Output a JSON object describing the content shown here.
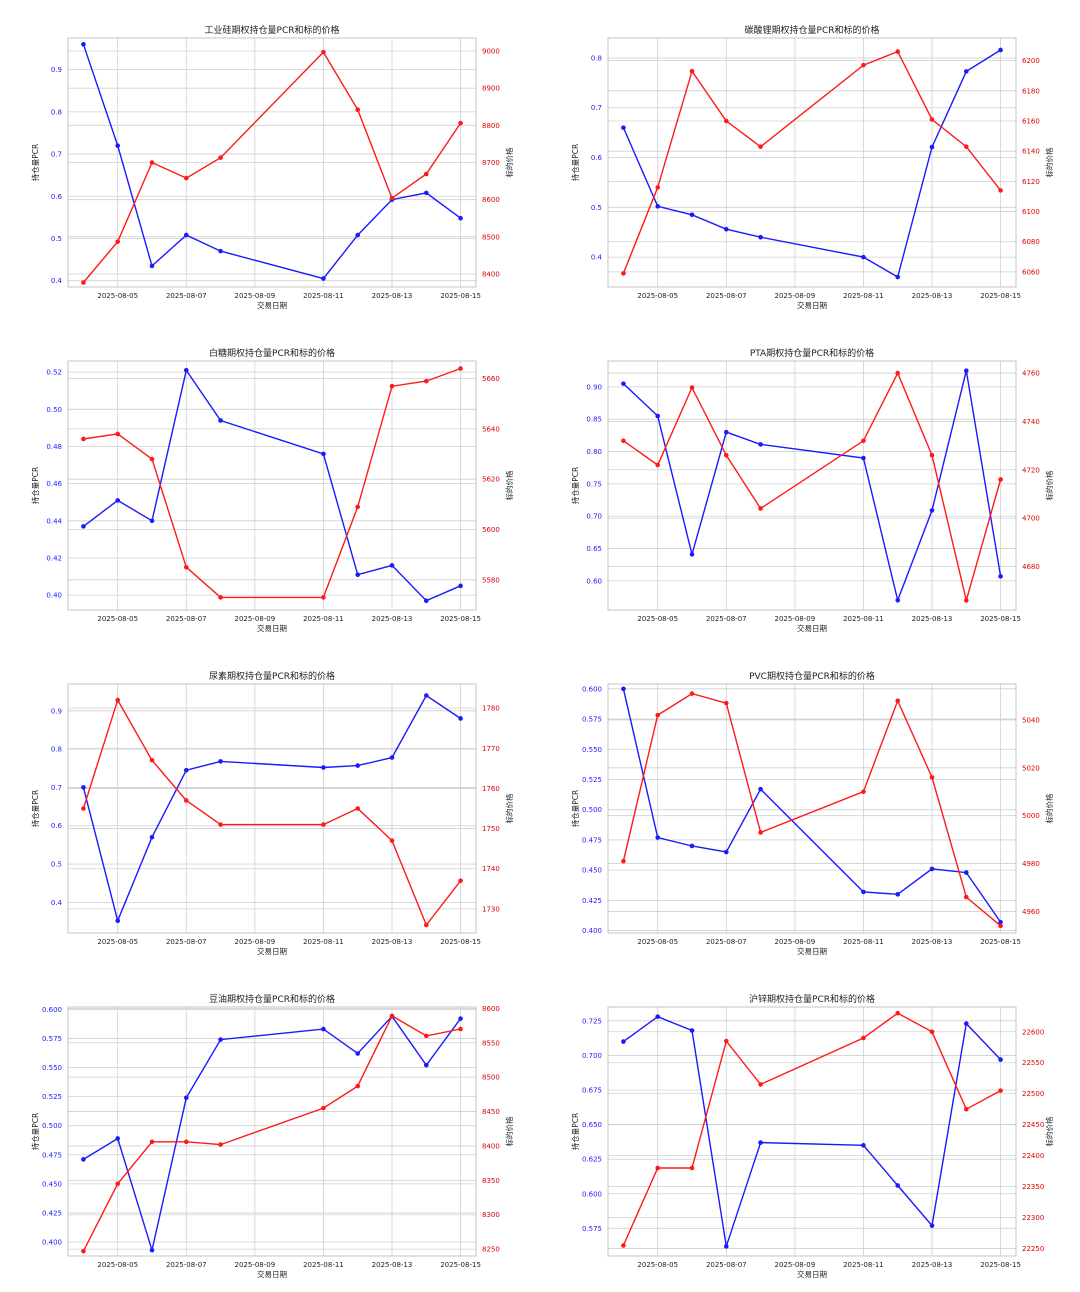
{
  "colors": {
    "pcr": "#1a1aff",
    "price": "#ff1a1a"
  },
  "chart_data": [
    {
      "type": "line",
      "title": "工业硅期权持仓量PCR和标的价格",
      "xlabel": "交易日期",
      "ylabel_left": "持仓量PCR",
      "ylabel_right": "标的价格",
      "xticks": [
        "2025-08-05",
        "2025-08-07",
        "2025-08-09",
        "2025-08-11",
        "2025-08-13",
        "2025-08-15"
      ],
      "x": [
        "2025-08-04",
        "2025-08-05",
        "2025-08-06",
        "2025-08-07",
        "2025-08-08",
        "2025-08-11",
        "2025-08-12",
        "2025-08-13",
        "2025-08-14",
        "2025-08-15"
      ],
      "ylim_left": [
        0.385,
        0.975
      ],
      "yticks_left": [
        "0.4",
        "0.5",
        "0.6",
        "0.7",
        "0.8",
        "0.9"
      ],
      "ylim_right": [
        8365,
        9035
      ],
      "yticks_right": [
        "8400",
        "8500",
        "8600",
        "8700",
        "8800",
        "8900",
        "9000"
      ],
      "series_left": [
        0.96,
        0.72,
        0.435,
        0.508,
        0.47,
        0.405,
        0.508,
        0.592,
        0.608,
        0.548
      ],
      "series_right": [
        8377,
        8487,
        8700,
        8658,
        8713,
        8997,
        8842,
        8604,
        8669,
        8806
      ]
    },
    {
      "type": "line",
      "title": "碳酸锂期权持仓量PCR和标的价格",
      "xlabel": "交易日期",
      "ylabel_left": "持仓量PCR",
      "ylabel_right": "标的价格",
      "xticks": [
        "2025-08-05",
        "2025-08-07",
        "2025-08-09",
        "2025-08-11",
        "2025-08-13",
        "2025-08-15"
      ],
      "x": [
        "2025-08-04",
        "2025-08-05",
        "2025-08-06",
        "2025-08-07",
        "2025-08-08",
        "2025-08-11",
        "2025-08-12",
        "2025-08-13",
        "2025-08-14",
        "2025-08-15"
      ],
      "ylim_left": [
        0.34,
        0.84
      ],
      "yticks_left": [
        "0.4",
        "0.5",
        "0.6",
        "0.7",
        "0.8"
      ],
      "ylim_right": [
        6050,
        6215
      ],
      "yticks_right": [
        "6060",
        "6080",
        "6100",
        "6120",
        "6140",
        "6160",
        "6180",
        "6200"
      ],
      "series_left": [
        0.66,
        0.502,
        0.485,
        0.456,
        0.44,
        0.4,
        0.36,
        0.621,
        0.773,
        0.816
      ],
      "series_right": [
        6059,
        6116,
        6193,
        6160,
        6143,
        6197,
        6206,
        6161,
        6143,
        6114
      ]
    },
    {
      "type": "line",
      "title": "白糖期权持仓量PCR和标的价格",
      "xlabel": "交易日期",
      "ylabel_left": "持仓量PCR",
      "ylabel_right": "标的价格",
      "xticks": [
        "2025-08-05",
        "2025-08-07",
        "2025-08-09",
        "2025-08-11",
        "2025-08-13",
        "2025-08-15"
      ],
      "x": [
        "2025-08-04",
        "2025-08-05",
        "2025-08-06",
        "2025-08-07",
        "2025-08-08",
        "2025-08-11",
        "2025-08-12",
        "2025-08-13",
        "2025-08-14",
        "2025-08-15"
      ],
      "ylim_left": [
        0.392,
        0.526
      ],
      "yticks_left": [
        "0.40",
        "0.42",
        "0.44",
        "0.46",
        "0.48",
        "0.50",
        "0.52"
      ],
      "ylim_right": [
        5568,
        5667
      ],
      "yticks_right": [
        "5580",
        "5600",
        "5620",
        "5640",
        "5660"
      ],
      "series_left": [
        0.437,
        0.451,
        0.44,
        0.521,
        0.494,
        0.476,
        0.411,
        0.416,
        0.397,
        0.405
      ],
      "series_right": [
        5636,
        5638,
        5628,
        5585,
        5573,
        5573,
        5609,
        5657,
        5659,
        5664
      ]
    },
    {
      "type": "line",
      "title": "PTA期权持仓量PCR和标的价格",
      "xlabel": "交易日期",
      "ylabel_left": "持仓量PCR",
      "ylabel_right": "标的价格",
      "xticks": [
        "2025-08-05",
        "2025-08-07",
        "2025-08-09",
        "2025-08-11",
        "2025-08-13",
        "2025-08-15"
      ],
      "x": [
        "2025-08-04",
        "2025-08-05",
        "2025-08-06",
        "2025-08-07",
        "2025-08-08",
        "2025-08-11",
        "2025-08-12",
        "2025-08-13",
        "2025-08-14",
        "2025-08-15"
      ],
      "ylim_left": [
        0.555,
        0.94
      ],
      "yticks_left": [
        "0.60",
        "0.65",
        "0.70",
        "0.75",
        "0.80",
        "0.85",
        "0.90"
      ],
      "ylim_right": [
        4662,
        4765
      ],
      "yticks_right": [
        "4680",
        "4700",
        "4720",
        "4740",
        "4760"
      ],
      "series_left": [
        0.905,
        0.855,
        0.641,
        0.83,
        0.811,
        0.79,
        0.57,
        0.709,
        0.925,
        0.607
      ],
      "series_right": [
        4732,
        4722,
        4754,
        4726,
        4704,
        4732,
        4760,
        4726,
        4666,
        4716
      ]
    },
    {
      "type": "line",
      "title": "尿素期权持仓量PCR和标的价格",
      "xlabel": "交易日期",
      "ylabel_left": "持仓量PCR",
      "ylabel_right": "标的价格",
      "xticks": [
        "2025-08-05",
        "2025-08-07",
        "2025-08-09",
        "2025-08-11",
        "2025-08-13",
        "2025-08-15"
      ],
      "x": [
        "2025-08-04",
        "2025-08-05",
        "2025-08-06",
        "2025-08-07",
        "2025-08-08",
        "2025-08-11",
        "2025-08-12",
        "2025-08-13",
        "2025-08-14",
        "2025-08-15"
      ],
      "ylim_left": [
        0.32,
        0.97
      ],
      "yticks_left": [
        "0.4",
        "0.5",
        "0.6",
        "0.7",
        "0.8",
        "0.9"
      ],
      "ylim_right": [
        1724,
        1786
      ],
      "yticks_right": [
        "1730",
        "1740",
        "1750",
        "1760",
        "1770",
        "1780"
      ],
      "series_left": [
        0.7,
        0.352,
        0.57,
        0.745,
        0.768,
        0.752,
        0.757,
        0.778,
        0.94,
        0.88
      ],
      "series_right": [
        1755,
        1782,
        1767,
        1757,
        1751,
        1751,
        1755,
        1747,
        1726,
        1737
      ]
    },
    {
      "type": "line",
      "title": "PVC期权持仓量PCR和标的价格",
      "xlabel": "交易日期",
      "ylabel_left": "持仓量PCR",
      "ylabel_right": "标的价格",
      "xticks": [
        "2025-08-05",
        "2025-08-07",
        "2025-08-09",
        "2025-08-11",
        "2025-08-13",
        "2025-08-15"
      ],
      "x": [
        "2025-08-04",
        "2025-08-05",
        "2025-08-06",
        "2025-08-07",
        "2025-08-08",
        "2025-08-11",
        "2025-08-12",
        "2025-08-13",
        "2025-08-14",
        "2025-08-15"
      ],
      "ylim_left": [
        0.398,
        0.604
      ],
      "yticks_left": [
        "0.400",
        "0.425",
        "0.450",
        "0.475",
        "0.500",
        "0.525",
        "0.550",
        "0.575",
        "0.600"
      ],
      "ylim_right": [
        4951,
        5055
      ],
      "yticks_right": [
        "4960",
        "4980",
        "5000",
        "5020",
        "5040"
      ],
      "series_left": [
        0.6,
        0.477,
        0.47,
        0.465,
        0.517,
        0.432,
        0.43,
        0.451,
        0.448,
        0.407
      ],
      "series_right": [
        4981,
        5042,
        5051,
        5047,
        4993,
        5010,
        5048,
        5016,
        4966,
        4954
      ]
    },
    {
      "type": "line",
      "title": "豆油期权持仓量PCR和标的价格",
      "xlabel": "交易日期",
      "ylabel_left": "持仓量PCR",
      "ylabel_right": "标的价格",
      "xticks": [
        "2025-08-05",
        "2025-08-07",
        "2025-08-09",
        "2025-08-11",
        "2025-08-13",
        "2025-08-15"
      ],
      "x": [
        "2025-08-04",
        "2025-08-05",
        "2025-08-06",
        "2025-08-07",
        "2025-08-08",
        "2025-08-11",
        "2025-08-12",
        "2025-08-13",
        "2025-08-14",
        "2025-08-15"
      ],
      "ylim_left": [
        0.388,
        0.602
      ],
      "yticks_left": [
        "0.400",
        "0.425",
        "0.450",
        "0.475",
        "0.500",
        "0.525",
        "0.550",
        "0.575",
        "0.600"
      ],
      "ylim_right": [
        8240,
        8602
      ],
      "yticks_right": [
        "8250",
        "8300",
        "8350",
        "8400",
        "8450",
        "8500",
        "8550",
        "8600"
      ],
      "series_left": [
        0.471,
        0.489,
        0.393,
        0.524,
        0.574,
        0.583,
        0.562,
        0.594,
        0.552,
        0.592
      ],
      "series_right": [
        8247,
        8345,
        8406,
        8406,
        8402,
        8455,
        8487,
        8589,
        8560,
        8570
      ]
    },
    {
      "type": "line",
      "title": "沪锌期权持仓量PCR和标的价格",
      "xlabel": "交易日期",
      "ylabel_left": "持仓量PCR",
      "ylabel_right": "标的价格",
      "xticks": [
        "2025-08-05",
        "2025-08-07",
        "2025-08-09",
        "2025-08-11",
        "2025-08-13",
        "2025-08-15"
      ],
      "x": [
        "2025-08-04",
        "2025-08-05",
        "2025-08-06",
        "2025-08-07",
        "2025-08-08",
        "2025-08-11",
        "2025-08-12",
        "2025-08-13",
        "2025-08-14",
        "2025-08-15"
      ],
      "ylim_left": [
        0.555,
        0.735
      ],
      "yticks_left": [
        "0.575",
        "0.600",
        "0.625",
        "0.650",
        "0.675",
        "0.700",
        "0.725"
      ],
      "ylim_right": [
        22238,
        22640
      ],
      "yticks_right": [
        "22250",
        "22300",
        "22350",
        "22400",
        "22450",
        "22500",
        "22550",
        "22600"
      ],
      "series_left": [
        0.71,
        0.728,
        0.718,
        0.562,
        0.637,
        0.635,
        0.606,
        0.577,
        0.723,
        0.697
      ],
      "series_right": [
        22255,
        22380,
        22380,
        22585,
        22515,
        22590,
        22630,
        22600,
        22475,
        22505
      ]
    }
  ]
}
